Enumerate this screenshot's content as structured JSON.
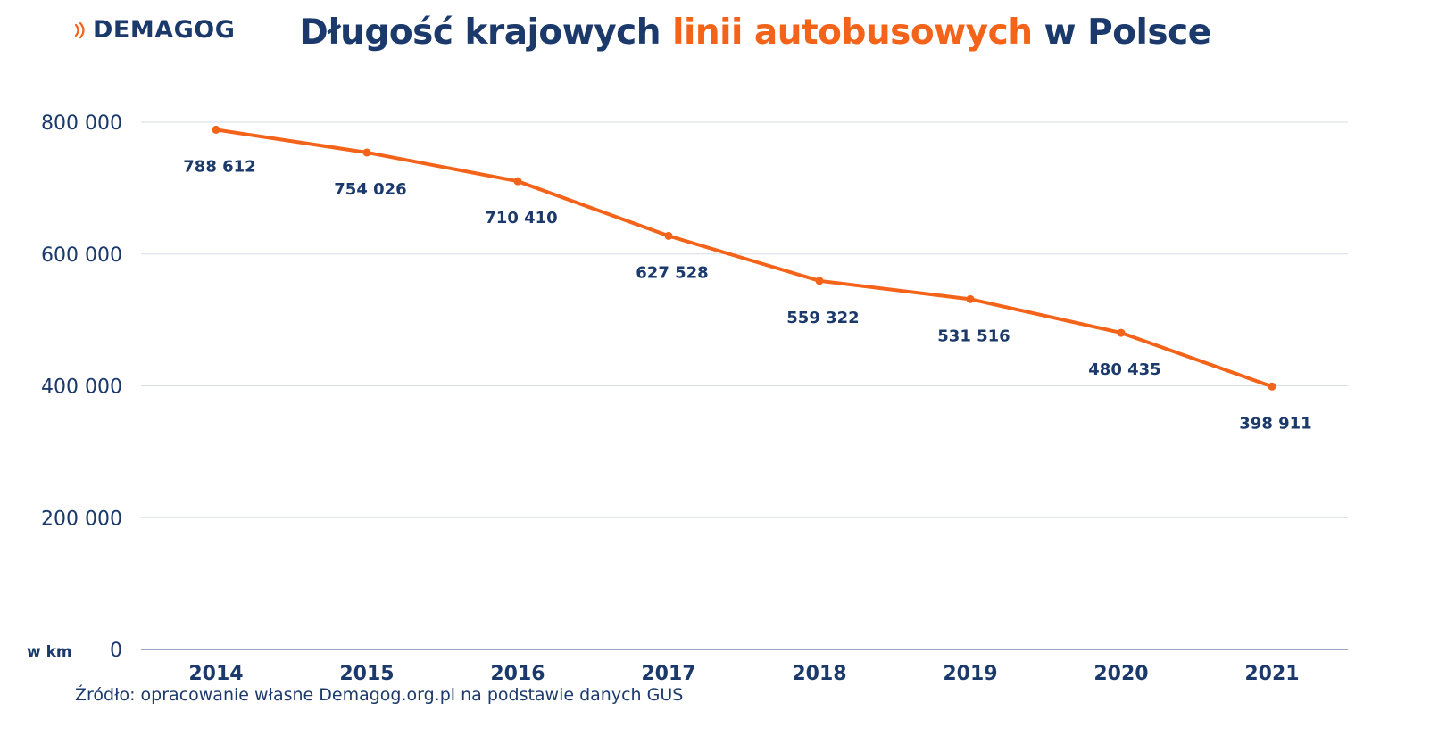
{
  "brand": {
    "logo_text": "DEMAGOG",
    "logo_icon": "signal-waves-icon",
    "accent_color": "#f3631a"
  },
  "title": {
    "part1": "Długość krajowych ",
    "highlight": "linii autobusowych",
    "part2": " w Polsce"
  },
  "colors": {
    "navy": "#1b3a6b",
    "orange": "#f3631a",
    "grid": "#d6dbe6",
    "axis": "#9aa6c4"
  },
  "chart_data": {
    "type": "line",
    "title": "Długość krajowych linii autobusowych w Polsce",
    "xlabel": "",
    "ylabel": "w km",
    "categories": [
      "2014",
      "2015",
      "2016",
      "2017",
      "2018",
      "2019",
      "2020",
      "2021"
    ],
    "values": [
      788612,
      754026,
      710410,
      627528,
      559322,
      531516,
      480435,
      398911
    ],
    "data_labels": [
      "788 612",
      "754 026",
      "710 410",
      "627 528",
      "559 322",
      "531 516",
      "480 435",
      "398 911"
    ],
    "ylim": [
      0,
      800000
    ],
    "yticks": [
      0,
      200000,
      400000,
      600000,
      800000
    ],
    "ytick_labels": [
      "0",
      "200 000",
      "400 000",
      "600 000",
      "800 000"
    ],
    "grid": true,
    "legend": "none"
  },
  "source": "Źródło: opracowanie własne Demagog.org.pl na podstawie danych GUS"
}
